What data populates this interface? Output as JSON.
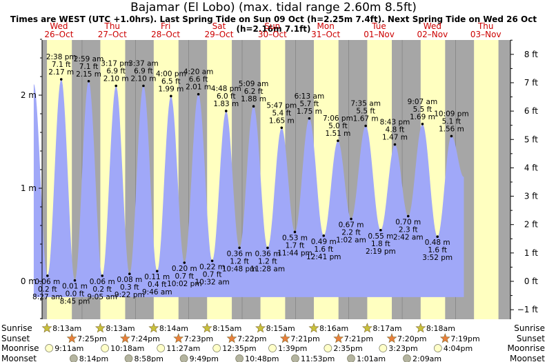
{
  "title": "Bajamar (El Lobo) (max. tidal range 2.60m 8.5ft)",
  "subtitle": "Times are WEST (UTC +1.0hrs). Last Spring Tide on Sun 09 Oct (h=2.25m 7.4ft). Next Spring Tide on Wed 26 Oct (h=2.16m 7.1ft)",
  "colors": {
    "night": "#a6a6a6",
    "day": "#ffffc0",
    "water": "#a0a8f8",
    "day_label": "#cc0000",
    "sun_fill": "#c8c03c",
    "sunset_fill": "#e8803c",
    "moonrise_fill": "#ffffc8",
    "moonset_fill": "#b4b4a0"
  },
  "chart_data": {
    "type": "area",
    "title": "Bajamar (El Lobo) (max. tidal range 2.60m 8.5ft)",
    "ylabel_left": "m",
    "ylabel_right": "ft",
    "ylim_m": [
      -0.55,
      2.75
    ],
    "left_ticks": [
      "0 m",
      "1 m",
      "2 m"
    ],
    "right_ticks": [
      "−1 ft",
      "0 ft",
      "1 ft",
      "2 ft",
      "3 ft",
      "4 ft",
      "5 ft",
      "6 ft",
      "7 ft",
      "8 ft"
    ],
    "days": [
      {
        "dow": "Wed",
        "date": "26–Oct"
      },
      {
        "dow": "Thu",
        "date": "27–Oct"
      },
      {
        "dow": "Fri",
        "date": "28–Oct"
      },
      {
        "dow": "Sat",
        "date": "29–Oct"
      },
      {
        "dow": "Sun",
        "date": "30–Oct"
      },
      {
        "dow": "Mon",
        "date": "31–Oct"
      },
      {
        "dow": "Tue",
        "date": "01–Nov"
      },
      {
        "dow": "Wed",
        "date": "02–Nov"
      },
      {
        "dow": "Thu",
        "date": "03–Nov"
      }
    ],
    "tides": [
      {
        "type": "low",
        "time": "8:27 am",
        "hour": 8.45,
        "m": 0.06,
        "m_label": "0.06 m",
        "ft_label": "0.2 ft"
      },
      {
        "type": "high",
        "time": "2:38 pm",
        "hour": 14.633,
        "m": 2.17,
        "m_label": "2.17 m",
        "ft_label": "7.1 ft"
      },
      {
        "type": "low",
        "time": "8:45 pm",
        "hour": 20.75,
        "m": 0.01,
        "m_label": "0.01 m",
        "ft_label": "0.0 ft"
      },
      {
        "type": "high",
        "time": "2:59 am",
        "hour": 26.983,
        "m": 2.15,
        "m_label": "2.15 m",
        "ft_label": "7.1 ft"
      },
      {
        "type": "low",
        "time": "9:05 am",
        "hour": 33.083,
        "m": 0.06,
        "m_label": "0.06 m",
        "ft_label": "0.2 ft"
      },
      {
        "type": "high",
        "time": "3:17 pm",
        "hour": 39.283,
        "m": 2.1,
        "m_label": "2.10 m",
        "ft_label": "6.9 ft"
      },
      {
        "type": "low",
        "time": "9:22 pm",
        "hour": 45.367,
        "m": 0.08,
        "m_label": "0.08 m",
        "ft_label": "0.3 ft"
      },
      {
        "type": "high",
        "time": "3:37 am",
        "hour": 51.617,
        "m": 2.1,
        "m_label": "2.10 m",
        "ft_label": "6.9 ft"
      },
      {
        "type": "low",
        "time": "9:46 am",
        "hour": 57.767,
        "m": 0.11,
        "m_label": "0.11 m",
        "ft_label": "0.4 ft"
      },
      {
        "type": "high",
        "time": "4:00 pm",
        "hour": 64.0,
        "m": 1.99,
        "m_label": "1.99 m",
        "ft_label": "6.5 ft"
      },
      {
        "type": "low",
        "time": "10:02 pm",
        "hour": 70.033,
        "m": 0.2,
        "m_label": "0.20 m",
        "ft_label": "0.7 ft"
      },
      {
        "type": "high",
        "time": "4:20 am",
        "hour": 76.333,
        "m": 2.01,
        "m_label": "2.01 m",
        "ft_label": "6.6 ft"
      },
      {
        "type": "low",
        "time": "10:32 am",
        "hour": 82.533,
        "m": 0.22,
        "m_label": "0.22 m",
        "ft_label": "0.7 ft"
      },
      {
        "type": "high",
        "time": "4:48 pm",
        "hour": 88.8,
        "m": 1.83,
        "m_label": "1.83 m",
        "ft_label": "6.0 ft"
      },
      {
        "type": "low",
        "time": "10:48 pm",
        "hour": 94.8,
        "m": 0.36,
        "m_label": "0.36 m",
        "ft_label": "1.2 ft"
      },
      {
        "type": "high",
        "time": "5:09 am",
        "hour": 101.15,
        "m": 1.88,
        "m_label": "1.88 m",
        "ft_label": "6.2 ft"
      },
      {
        "type": "low",
        "time": "11:28 am",
        "hour": 107.467,
        "m": 0.36,
        "m_label": "0.36 m",
        "ft_label": "1.2 ft"
      },
      {
        "type": "high",
        "time": "5:47 pm",
        "hour": 113.783,
        "m": 1.65,
        "m_label": "1.65 m",
        "ft_label": "5.4 ft"
      },
      {
        "type": "low",
        "time": "11:44 pm",
        "hour": 119.733,
        "m": 0.53,
        "m_label": "0.53 m",
        "ft_label": "1.7 ft"
      },
      {
        "type": "high",
        "time": "6:13 am",
        "hour": 126.217,
        "m": 1.75,
        "m_label": "1.75 m",
        "ft_label": "5.7 ft"
      },
      {
        "type": "low",
        "time": "12:41 pm",
        "hour": 132.683,
        "m": 0.49,
        "m_label": "0.49 m",
        "ft_label": "1.6 ft"
      },
      {
        "type": "high",
        "time": "7:06 pm",
        "hour": 139.1,
        "m": 1.51,
        "m_label": "1.51 m",
        "ft_label": "5.0 ft"
      },
      {
        "type": "low",
        "time": "1:02 am",
        "hour": 145.033,
        "m": 0.67,
        "m_label": "0.67 m",
        "ft_label": "2.2 ft"
      },
      {
        "type": "high",
        "time": "7:35 am",
        "hour": 151.583,
        "m": 1.67,
        "m_label": "1.67 m",
        "ft_label": "5.5 ft"
      },
      {
        "type": "low",
        "time": "2:19 pm",
        "hour": 158.317,
        "m": 0.55,
        "m_label": "0.55 m",
        "ft_label": "1.8 ft"
      },
      {
        "type": "high",
        "time": "8:43 pm",
        "hour": 164.717,
        "m": 1.47,
        "m_label": "1.47 m",
        "ft_label": "4.8 ft"
      },
      {
        "type": "low",
        "time": "2:42 am",
        "hour": 170.7,
        "m": 0.7,
        "m_label": "0.70 m",
        "ft_label": "2.3 ft"
      },
      {
        "type": "high",
        "time": "9:07 am",
        "hour": 177.117,
        "m": 1.69,
        "m_label": "1.69 m",
        "ft_label": "5.5 ft"
      },
      {
        "type": "low",
        "time": "3:52 pm",
        "hour": 183.867,
        "m": 0.48,
        "m_label": "0.48 m",
        "ft_label": "1.6 ft"
      },
      {
        "type": "high",
        "time": "10:09 pm",
        "hour": 190.15,
        "m": 1.56,
        "m_label": "1.56 m",
        "ft_label": "5.1 ft"
      }
    ],
    "rows": {
      "sunrise_label": "Sunrise",
      "sunset_label": "Sunset",
      "moonrise_label": "Moonrise",
      "moonset_label": "Moonset"
    },
    "sunrise": [
      {
        "time": "8:13am",
        "hour": 8.217
      },
      {
        "time": "8:13am",
        "hour": 32.217
      },
      {
        "time": "8:14am",
        "hour": 56.233
      },
      {
        "time": "8:15am",
        "hour": 80.25
      },
      {
        "time": "8:15am",
        "hour": 104.25
      },
      {
        "time": "8:16am",
        "hour": 128.267
      },
      {
        "time": "8:17am",
        "hour": 152.283
      },
      {
        "time": "8:18am",
        "hour": 176.3
      }
    ],
    "sunset": [
      {
        "time": "7:25pm",
        "hour": 19.417
      },
      {
        "time": "7:24pm",
        "hour": 43.4
      },
      {
        "time": "7:23pm",
        "hour": 67.383
      },
      {
        "time": "7:22pm",
        "hour": 91.367
      },
      {
        "time": "7:21pm",
        "hour": 115.35
      },
      {
        "time": "7:21pm",
        "hour": 139.35
      },
      {
        "time": "7:20pm",
        "hour": 163.333
      },
      {
        "time": "7:19pm",
        "hour": 187.317
      }
    ],
    "moonrise": [
      {
        "time": "9:11am",
        "hour": 9.183
      },
      {
        "time": "10:18am",
        "hour": 34.3
      },
      {
        "time": "11:27am",
        "hour": 59.45
      },
      {
        "time": "12:35pm",
        "hour": 84.583
      },
      {
        "time": "1:39pm",
        "hour": 109.65
      },
      {
        "time": "2:35pm",
        "hour": 134.583
      },
      {
        "time": "3:23pm",
        "hour": 159.383
      },
      {
        "time": "4:04pm",
        "hour": 184.067
      }
    ],
    "moonset": [
      {
        "time": "8:14pm",
        "hour": 20.233
      },
      {
        "time": "8:58pm",
        "hour": 44.967
      },
      {
        "time": "9:49pm",
        "hour": 69.817
      },
      {
        "time": "10:48pm",
        "hour": 94.8
      },
      {
        "time": "11:53pm",
        "hour": 119.883
      },
      {
        "time": "1:01am",
        "hour": 145.017
      },
      {
        "time": "2:09am",
        "hour": 170.15
      }
    ]
  }
}
